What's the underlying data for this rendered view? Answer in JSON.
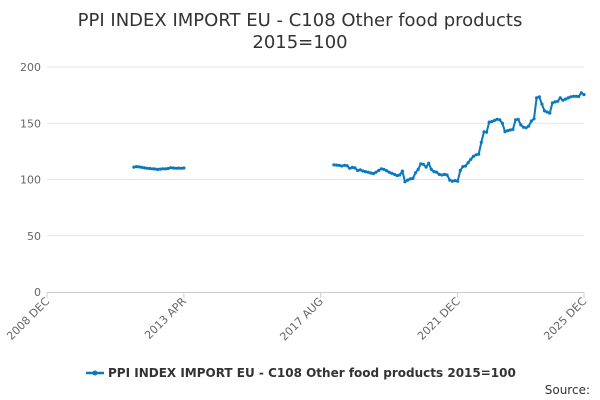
{
  "chart_data": {
    "type": "line",
    "title": "PPI INDEX IMPORT EU - C108 Other food products",
    "subtitle": "2015=100",
    "xlabel": "",
    "ylabel": "",
    "ylim": [
      0,
      200
    ],
    "y_ticks": [
      0,
      50,
      100,
      150,
      200
    ],
    "x_ticks": [
      "2008 DEC",
      "2013 APR",
      "2017 AUG",
      "2021 DEC",
      "2025 DEC"
    ],
    "x_tick_dates": [
      "2008-12",
      "2013-04",
      "2017-08",
      "2021-12",
      "2025-12"
    ],
    "grid": "horizontal",
    "legend_position": "bottom",
    "color": "#0a78c0",
    "series": [
      {
        "name": "PPI INDEX IMPORT EU - C108 Other food products 2015=100",
        "points": [
          {
            "x": "2011-09",
            "y": 111.0
          },
          {
            "x": "2011-10",
            "y": 111.5
          },
          {
            "x": "2011-11",
            "y": 111.2
          },
          {
            "x": "2011-12",
            "y": 110.8
          },
          {
            "x": "2012-01",
            "y": 110.3
          },
          {
            "x": "2012-02",
            "y": 110.0
          },
          {
            "x": "2012-03",
            "y": 109.8
          },
          {
            "x": "2012-04",
            "y": 109.5
          },
          {
            "x": "2012-05",
            "y": 109.3
          },
          {
            "x": "2012-06",
            "y": 109.0
          },
          {
            "x": "2012-07",
            "y": 109.2
          },
          {
            "x": "2012-08",
            "y": 109.5
          },
          {
            "x": "2012-09",
            "y": 109.4
          },
          {
            "x": "2012-10",
            "y": 109.8
          },
          {
            "x": "2012-11",
            "y": 110.5
          },
          {
            "x": "2012-12",
            "y": 110.2
          },
          {
            "x": "2013-01",
            "y": 110.0
          },
          {
            "x": "2013-02",
            "y": 110.1
          },
          {
            "x": "2013-03",
            "y": 110.0
          },
          {
            "x": "2013-04",
            "y": 110.2
          },
          {
            "x": "2018-01",
            "y": 113.0
          },
          {
            "x": "2018-02",
            "y": 112.8
          },
          {
            "x": "2018-03",
            "y": 112.5
          },
          {
            "x": "2018-04",
            "y": 112.0
          },
          {
            "x": "2018-05",
            "y": 112.6
          },
          {
            "x": "2018-06",
            "y": 112.3
          },
          {
            "x": "2018-07",
            "y": 110.0
          },
          {
            "x": "2018-08",
            "y": 110.8
          },
          {
            "x": "2018-09",
            "y": 110.3
          },
          {
            "x": "2018-10",
            "y": 108.0
          },
          {
            "x": "2018-11",
            "y": 108.5
          },
          {
            "x": "2018-12",
            "y": 107.6
          },
          {
            "x": "2019-01",
            "y": 107.0
          },
          {
            "x": "2019-02",
            "y": 106.5
          },
          {
            "x": "2019-03",
            "y": 105.8
          },
          {
            "x": "2019-04",
            "y": 105.2
          },
          {
            "x": "2019-05",
            "y": 106.5
          },
          {
            "x": "2019-06",
            "y": 108.0
          },
          {
            "x": "2019-07",
            "y": 109.5
          },
          {
            "x": "2019-08",
            "y": 109.0
          },
          {
            "x": "2019-09",
            "y": 107.8
          },
          {
            "x": "2019-10",
            "y": 106.5
          },
          {
            "x": "2019-11",
            "y": 105.5
          },
          {
            "x": "2019-12",
            "y": 104.5
          },
          {
            "x": "2020-01",
            "y": 103.5
          },
          {
            "x": "2020-02",
            "y": 104.0
          },
          {
            "x": "2020-03",
            "y": 107.5
          },
          {
            "x": "2020-04",
            "y": 98.0
          },
          {
            "x": "2020-05",
            "y": 99.5
          },
          {
            "x": "2020-06",
            "y": 100.5
          },
          {
            "x": "2020-07",
            "y": 101.0
          },
          {
            "x": "2020-08",
            "y": 106.0
          },
          {
            "x": "2020-09",
            "y": 109.0
          },
          {
            "x": "2020-10",
            "y": 114.0
          },
          {
            "x": "2020-11",
            "y": 113.5
          },
          {
            "x": "2020-12",
            "y": 111.0
          },
          {
            "x": "2021-01",
            "y": 114.5
          },
          {
            "x": "2021-02",
            "y": 109.0
          },
          {
            "x": "2021-03",
            "y": 107.0
          },
          {
            "x": "2021-04",
            "y": 106.5
          },
          {
            "x": "2021-05",
            "y": 104.5
          },
          {
            "x": "2021-06",
            "y": 104.0
          },
          {
            "x": "2021-07",
            "y": 104.5
          },
          {
            "x": "2021-08",
            "y": 104.0
          },
          {
            "x": "2021-09",
            "y": 99.5
          },
          {
            "x": "2021-10",
            "y": 98.5
          },
          {
            "x": "2021-11",
            "y": 99.0
          },
          {
            "x": "2021-12",
            "y": 98.5
          },
          {
            "x": "2022-01",
            "y": 108.0
          },
          {
            "x": "2022-02",
            "y": 111.5
          },
          {
            "x": "2022-03",
            "y": 112.0
          },
          {
            "x": "2022-04",
            "y": 115.0
          },
          {
            "x": "2022-05",
            "y": 118.0
          },
          {
            "x": "2022-06",
            "y": 120.5
          },
          {
            "x": "2022-07",
            "y": 122.0
          },
          {
            "x": "2022-08",
            "y": 122.5
          },
          {
            "x": "2022-09",
            "y": 133.0
          },
          {
            "x": "2022-10",
            "y": 142.5
          },
          {
            "x": "2022-11",
            "y": 142.0
          },
          {
            "x": "2022-12",
            "y": 151.0
          },
          {
            "x": "2023-01",
            "y": 151.5
          },
          {
            "x": "2023-02",
            "y": 152.5
          },
          {
            "x": "2023-03",
            "y": 153.5
          },
          {
            "x": "2023-04",
            "y": 153.0
          },
          {
            "x": "2023-05",
            "y": 150.0
          },
          {
            "x": "2023-06",
            "y": 142.5
          },
          {
            "x": "2023-07",
            "y": 143.5
          },
          {
            "x": "2023-08",
            "y": 144.0
          },
          {
            "x": "2023-09",
            "y": 144.5
          },
          {
            "x": "2023-10",
            "y": 153.0
          },
          {
            "x": "2023-11",
            "y": 153.5
          },
          {
            "x": "2023-12",
            "y": 148.5
          },
          {
            "x": "2024-01",
            "y": 146.5
          },
          {
            "x": "2024-02",
            "y": 146.0
          },
          {
            "x": "2024-03",
            "y": 147.5
          },
          {
            "x": "2024-04",
            "y": 152.0
          },
          {
            "x": "2024-05",
            "y": 154.0
          },
          {
            "x": "2024-06",
            "y": 172.5
          },
          {
            "x": "2024-07",
            "y": 173.5
          },
          {
            "x": "2024-08",
            "y": 167.0
          },
          {
            "x": "2024-09",
            "y": 161.0
          },
          {
            "x": "2024-10",
            "y": 160.0
          },
          {
            "x": "2024-11",
            "y": 159.0
          },
          {
            "x": "2024-12",
            "y": 168.0
          },
          {
            "x": "2025-01",
            "y": 169.0
          },
          {
            "x": "2025-02",
            "y": 169.5
          },
          {
            "x": "2025-03",
            "y": 172.5
          },
          {
            "x": "2025-04",
            "y": 170.5
          },
          {
            "x": "2025-05",
            "y": 171.5
          },
          {
            "x": "2025-06",
            "y": 172.5
          },
          {
            "x": "2025-07",
            "y": 173.5
          },
          {
            "x": "2025-08",
            "y": 174.0
          },
          {
            "x": "2025-09",
            "y": 174.0
          },
          {
            "x": "2025-10",
            "y": 173.8
          },
          {
            "x": "2025-11",
            "y": 177.0
          },
          {
            "x": "2025-12",
            "y": 175.5
          }
        ]
      }
    ]
  },
  "source": "Source:"
}
